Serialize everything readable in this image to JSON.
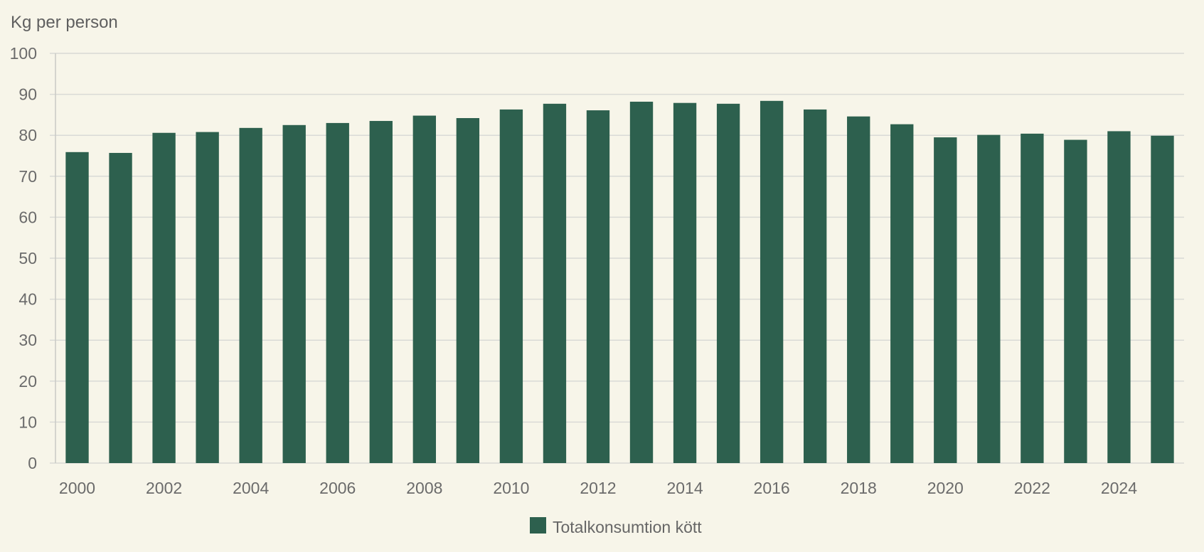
{
  "chart_data": {
    "type": "bar",
    "ylabel": "Kg per person",
    "ylim": [
      0,
      100
    ],
    "yticks": [
      0,
      10,
      20,
      30,
      40,
      50,
      60,
      70,
      80,
      90,
      100
    ],
    "categories": [
      "2000",
      "2001",
      "2002",
      "2003",
      "2004",
      "2005",
      "2006",
      "2007",
      "2008",
      "2009",
      "2010",
      "2011",
      "2012",
      "2013",
      "2014",
      "2015",
      "2016",
      "2017",
      "2018",
      "2019",
      "2020",
      "2021",
      "2022",
      "2023",
      "2024",
      "2025"
    ],
    "xtick_labels": [
      "2000",
      "2002",
      "2004",
      "2006",
      "2008",
      "2010",
      "2012",
      "2014",
      "2016",
      "2018",
      "2020",
      "2022",
      "2024"
    ],
    "series": [
      {
        "name": "Totalkonsumtion kött",
        "color": "#2d604e",
        "values": [
          75.9,
          75.7,
          80.6,
          80.8,
          81.8,
          82.5,
          83.0,
          83.5,
          84.8,
          84.2,
          86.3,
          87.7,
          86.1,
          88.2,
          87.9,
          87.7,
          88.4,
          86.3,
          84.6,
          82.7,
          79.5,
          80.1,
          80.4,
          78.9,
          81.0,
          79.9
        ]
      }
    ],
    "grid": true,
    "legend_position": "bottom-center",
    "colors": {
      "background": "#f7f5e9",
      "grid": "#d9dad6",
      "axis": "#c9cac5"
    }
  }
}
